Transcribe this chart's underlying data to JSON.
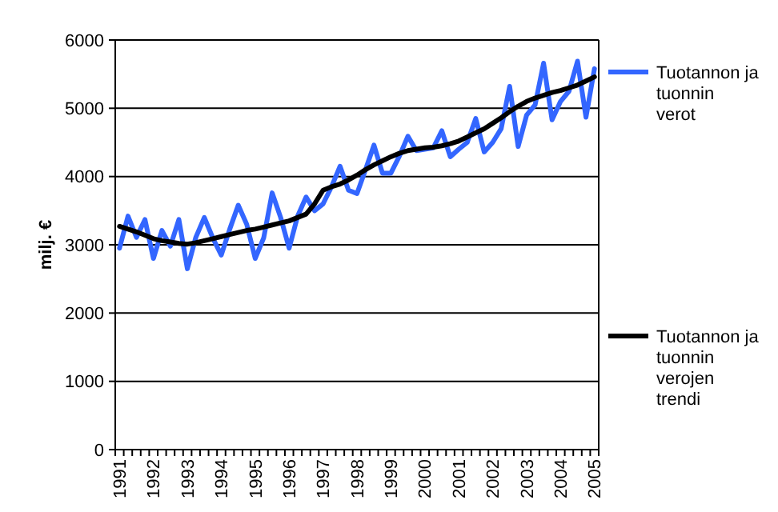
{
  "chart_data": {
    "type": "line",
    "ylabel": "milj. €",
    "categories": [
      "1991",
      null,
      null,
      null,
      "1992",
      null,
      null,
      null,
      "1993",
      null,
      null,
      null,
      "1994",
      null,
      null,
      null,
      "1995",
      null,
      null,
      null,
      "1996",
      null,
      null,
      null,
      "1997",
      null,
      null,
      null,
      "1998",
      null,
      null,
      null,
      "1999",
      null,
      null,
      null,
      "2000",
      null,
      null,
      null,
      "2001",
      null,
      null,
      null,
      "2002",
      null,
      null,
      null,
      "2003",
      null,
      null,
      null,
      "2004",
      null,
      null,
      null,
      "2005"
    ],
    "series": [
      {
        "name": "Tuotannon ja tuonnin verot",
        "color": "#3366ff",
        "values": [
          2950,
          3420,
          3110,
          3370,
          2800,
          3210,
          2980,
          3370,
          2650,
          3110,
          3400,
          3100,
          2850,
          3230,
          3580,
          3300,
          2800,
          3100,
          3760,
          3400,
          2950,
          3420,
          3700,
          3500,
          3600,
          3850,
          4150,
          3800,
          3750,
          4100,
          4460,
          4050,
          4050,
          4300,
          4590,
          4380,
          4400,
          4420,
          4670,
          4290,
          4400,
          4500,
          4850,
          4360,
          4500,
          4700,
          5320,
          4440,
          4900,
          5050,
          5660,
          4830,
          5100,
          5250,
          5690,
          4870,
          5580
        ]
      },
      {
        "name": "Tuotannon ja tuonnin verojen trendi",
        "color": "#000000",
        "values": [
          3270,
          3230,
          3190,
          3140,
          3090,
          3060,
          3040,
          3020,
          3010,
          3030,
          3060,
          3090,
          3120,
          3150,
          3180,
          3210,
          3230,
          3260,
          3290,
          3320,
          3350,
          3400,
          3450,
          3600,
          3800,
          3850,
          3890,
          3950,
          4020,
          4100,
          4170,
          4230,
          4290,
          4340,
          4380,
          4400,
          4420,
          4430,
          4450,
          4480,
          4520,
          4580,
          4640,
          4700,
          4780,
          4860,
          4950,
          5030,
          5100,
          5150,
          5190,
          5230,
          5260,
          5300,
          5340,
          5400,
          5460
        ]
      }
    ],
    "ylim": [
      0,
      6000
    ],
    "yticks": [
      0,
      1000,
      2000,
      3000,
      4000,
      5000,
      6000
    ],
    "grid": "y",
    "legend": "right",
    "marker": "none",
    "line_style": "solid"
  }
}
